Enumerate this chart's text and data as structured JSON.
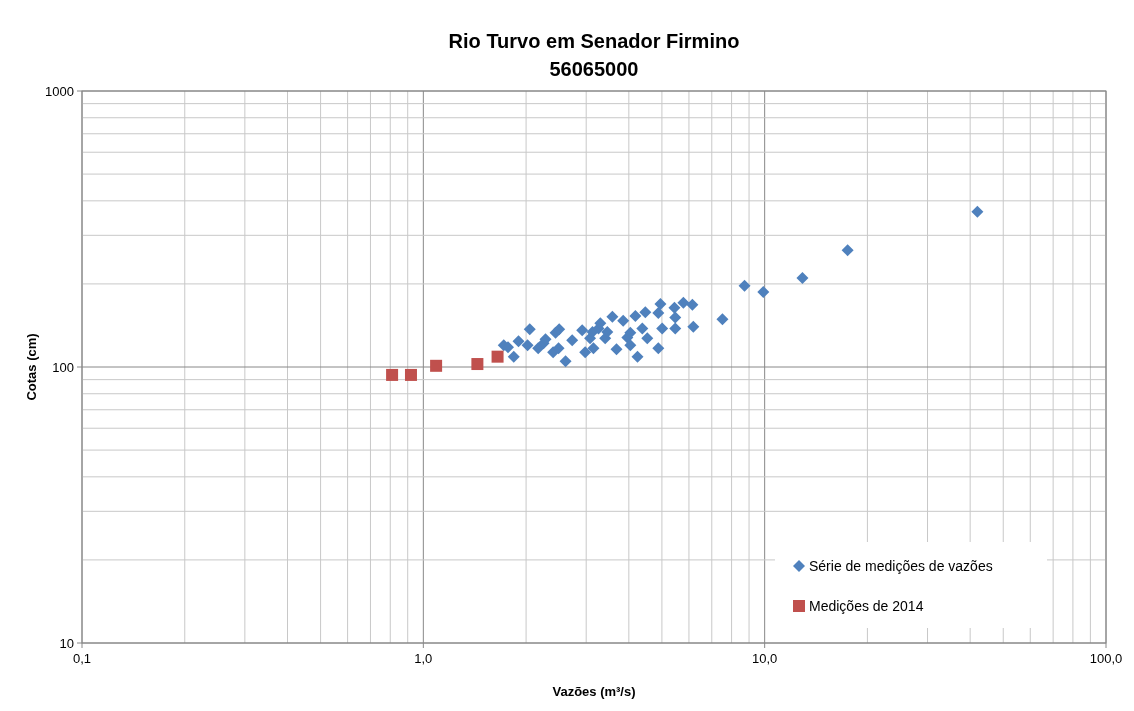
{
  "chart_data": {
    "type": "scatter",
    "title": "Rio Turvo em Senador Firmino\n56065000",
    "xlabel": "Vazões (m³/s)",
    "ylabel": "Cotas (cm)",
    "log": "xy",
    "xlim": [
      0.1,
      100
    ],
    "ylim": [
      10,
      1000
    ],
    "xticks": [
      {
        "value": 0.1,
        "label": "0,1"
      },
      {
        "value": 1,
        "label": "1,0"
      },
      {
        "value": 10,
        "label": "10,0"
      },
      {
        "value": 100,
        "label": "100,0"
      }
    ],
    "yticks": [
      10,
      100,
      1000
    ],
    "grid": true,
    "legend": "bottom right",
    "series": [
      {
        "name": "Série de medições de vazões",
        "color": "#4f81bd",
        "marker": "diamond",
        "x": [
          1.72,
          1.77,
          1.84,
          1.9,
          2.02,
          2.05,
          2.17,
          2.25,
          2.28,
          2.4,
          2.44,
          2.49,
          2.5,
          2.61,
          2.73,
          2.92,
          2.98,
          3.08,
          3.15,
          3.13,
          3.26,
          3.3,
          3.41,
          3.46,
          3.58,
          3.68,
          3.85,
          3.96,
          4.04,
          4.04,
          4.24,
          4.18,
          4.38,
          4.47,
          4.53,
          4.88,
          4.88,
          4.95,
          5.01,
          5.44,
          5.47,
          5.47,
          5.78,
          6.14,
          6.18,
          7.52,
          8.73,
          9.91,
          12.9,
          17.5,
          42.0
        ],
        "values": [
          120,
          118,
          109,
          124,
          120,
          137,
          117,
          122,
          126,
          113,
          133,
          117,
          137,
          105,
          125,
          136,
          113,
          127,
          117,
          134,
          138,
          144,
          127,
          134,
          152,
          116,
          147,
          128,
          133,
          120,
          109,
          153,
          138,
          158,
          127,
          117,
          157,
          169,
          138,
          164,
          151,
          138,
          171,
          168,
          140,
          149,
          197,
          187,
          210,
          265,
          365
        ]
      },
      {
        "name": "Medições de 2014",
        "color": "#c0504d",
        "marker": "square",
        "x": [
          0.81,
          0.92,
          1.09,
          1.44,
          1.65
        ],
        "values": [
          93.6,
          93.6,
          101,
          102.5,
          109
        ]
      }
    ]
  }
}
